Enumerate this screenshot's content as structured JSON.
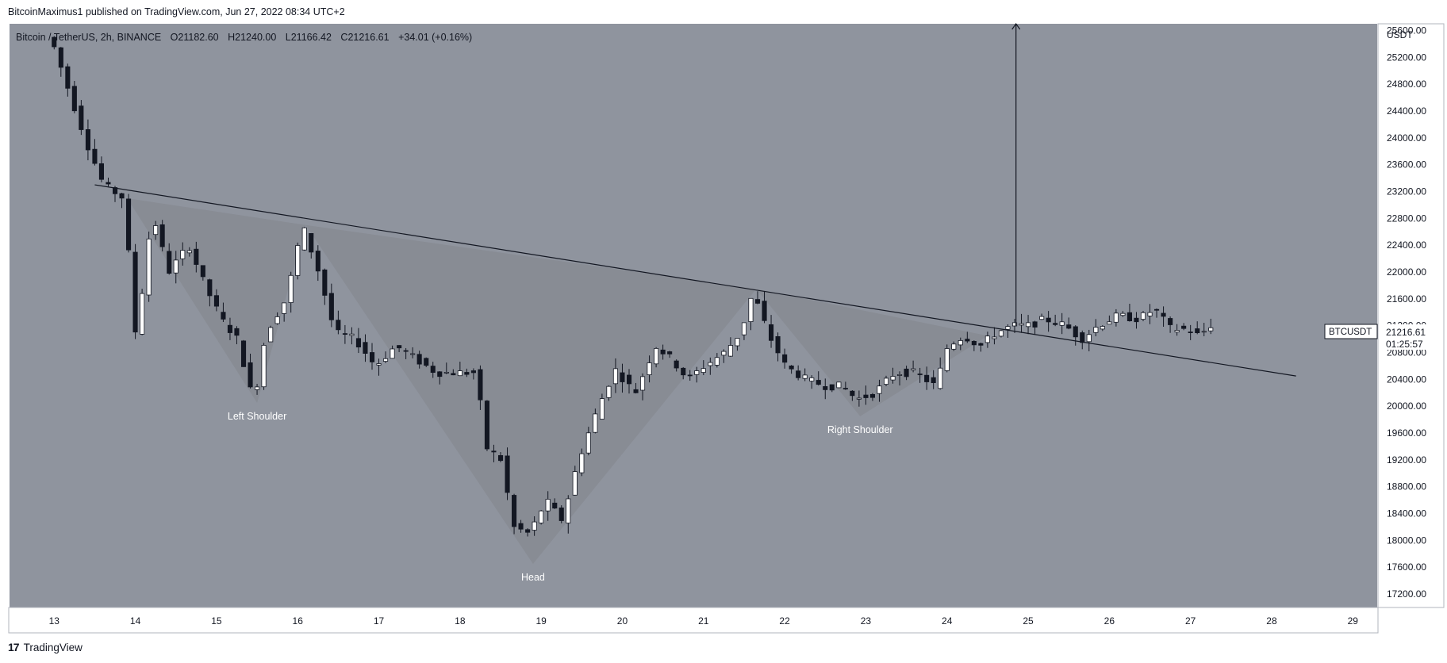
{
  "header": {
    "published_line": "BitcoinMaximus1 published on TradingView.com, Jun 27, 2022 08:34 UTC+2"
  },
  "legend": {
    "symbol": "Bitcoin / TetherUS, 2h, BINANCE",
    "open_label": "O",
    "open": "21182.60",
    "high_label": "H",
    "high": "21240.00",
    "low_label": "L",
    "low": "21166.42",
    "close_label": "C",
    "close": "21216.61",
    "change": "+34.01 (+0.16%)"
  },
  "price_axis": {
    "currency": "USDT"
  },
  "price_tag": {
    "symbol": "BTCUSDT",
    "price": "21216.61",
    "countdown": "01:25:57"
  },
  "footer": {
    "brand": "TradingView"
  },
  "colors": {
    "background": "#8f949e",
    "triangle_shade": "#888b93",
    "up_candle": "#ffffff",
    "down_candle": "#131722",
    "trendline": "#131722",
    "axis_background": "#ffffff"
  },
  "chart_data": {
    "type": "candlestick",
    "interval": "2h",
    "pattern": "inverse head and shoulders",
    "annotations": [
      {
        "text": "Left Shoulder",
        "day": 15.5,
        "price": 19800
      },
      {
        "text": "Head",
        "day": 18.9,
        "price": 17400
      },
      {
        "text": "Right Shoulder",
        "day": 22.93,
        "price": 19600
      }
    ],
    "neckline": {
      "from": {
        "day": 13.5,
        "price": 23300
      },
      "to": {
        "day": 28.3,
        "price": 20450
      }
    },
    "target_arrow": {
      "day": 24.85,
      "from_price": 21200,
      "to_price": 25700
    },
    "shaded_triangles": [
      [
        {
          "day": 13.9,
          "price": 23100
        },
        {
          "day": 15.5,
          "price": 20050
        },
        {
          "day": 16.1,
          "price": 22700
        }
      ],
      [
        {
          "day": 16.1,
          "price": 22700
        },
        {
          "day": 18.9,
          "price": 17650
        },
        {
          "day": 21.65,
          "price": 21750
        }
      ],
      [
        {
          "day": 21.65,
          "price": 21750
        },
        {
          "day": 22.93,
          "price": 19850
        },
        {
          "day": 24.5,
          "price": 21050
        }
      ]
    ],
    "x_axis": {
      "ticks": [
        13,
        14,
        15,
        16,
        17,
        18,
        19,
        20,
        21,
        22,
        23,
        24,
        25,
        26,
        27,
        28,
        29
      ],
      "range": [
        12.45,
        29.3
      ]
    },
    "y_axis": {
      "range": [
        17000,
        25700
      ],
      "ticks": [
        "17200.00",
        "17600.00",
        "18000.00",
        "18400.00",
        "18800.00",
        "19200.00",
        "19600.00",
        "20000.00",
        "20400.00",
        "20800.00",
        "21200.00",
        "21600.00",
        "22000.00",
        "22400.00",
        "22800.00",
        "23200.00",
        "23600.00",
        "24000.00",
        "24400.00",
        "24800.00",
        "25200.00",
        "25600.00"
      ]
    },
    "price_path": [
      [
        13.0,
        25500
      ],
      [
        13.25,
        24600
      ],
      [
        13.45,
        23900
      ],
      [
        13.65,
        23300
      ],
      [
        13.9,
        23100
      ],
      [
        14.05,
        21000
      ],
      [
        14.25,
        22900
      ],
      [
        14.45,
        22000
      ],
      [
        14.7,
        22400
      ],
      [
        14.9,
        21800
      ],
      [
        15.1,
        21300
      ],
      [
        15.3,
        21000
      ],
      [
        15.5,
        20050
      ],
      [
        15.65,
        21100
      ],
      [
        15.9,
        21600
      ],
      [
        16.1,
        22700
      ],
      [
        16.3,
        22000
      ],
      [
        16.5,
        21100
      ],
      [
        16.75,
        21000
      ],
      [
        17.0,
        20600
      ],
      [
        17.25,
        20900
      ],
      [
        17.5,
        20700
      ],
      [
        17.75,
        20500
      ],
      [
        18.0,
        20500
      ],
      [
        18.25,
        20500
      ],
      [
        18.35,
        19400
      ],
      [
        18.55,
        19200
      ],
      [
        18.7,
        18200
      ],
      [
        18.9,
        18100
      ],
      [
        19.1,
        18600
      ],
      [
        19.3,
        18300
      ],
      [
        19.5,
        19200
      ],
      [
        19.75,
        20000
      ],
      [
        19.95,
        20550
      ],
      [
        20.2,
        20200
      ],
      [
        20.45,
        20900
      ],
      [
        20.65,
        20700
      ],
      [
        20.85,
        20400
      ],
      [
        21.05,
        20600
      ],
      [
        21.3,
        20800
      ],
      [
        21.5,
        21100
      ],
      [
        21.65,
        21700
      ],
      [
        21.85,
        21050
      ],
      [
        22.05,
        20600
      ],
      [
        22.3,
        20400
      ],
      [
        22.55,
        20300
      ],
      [
        22.75,
        20300
      ],
      [
        22.93,
        20100
      ],
      [
        23.15,
        20200
      ],
      [
        23.4,
        20500
      ],
      [
        23.65,
        20500
      ],
      [
        23.9,
        20300
      ],
      [
        24.05,
        20900
      ],
      [
        24.25,
        21050
      ],
      [
        24.45,
        20900
      ],
      [
        24.65,
        21100
      ],
      [
        24.85,
        21200
      ],
      [
        25.05,
        21200
      ],
      [
        25.25,
        21300
      ],
      [
        25.5,
        21200
      ],
      [
        25.7,
        21000
      ],
      [
        25.9,
        21200
      ],
      [
        26.15,
        21350
      ],
      [
        26.4,
        21300
      ],
      [
        26.6,
        21450
      ],
      [
        26.8,
        21150
      ],
      [
        27.0,
        21150
      ],
      [
        27.15,
        21050
      ],
      [
        27.3,
        21216.61
      ]
    ]
  }
}
